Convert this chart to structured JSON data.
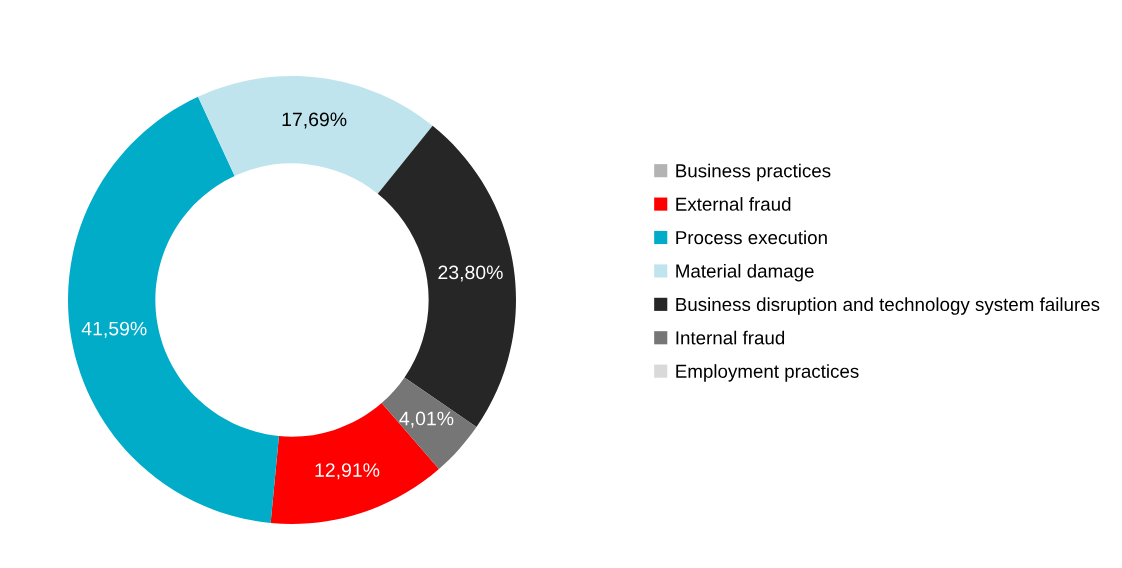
{
  "chart_data": {
    "type": "donut",
    "categories": [
      "Business practices",
      "External fraud",
      "Process execution",
      "Material damage",
      "Business disruption and technology system failures",
      "Internal fraud",
      "Employment practices"
    ],
    "values": [
      0,
      12.91,
      41.59,
      17.69,
      23.8,
      4.01,
      0
    ],
    "colors": [
      "#b3b3b3",
      "#ff0000",
      "#00acc8",
      "#bfe4ee",
      "#262626",
      "#767676",
      "#d9d9d9"
    ],
    "value_labels": [
      null,
      "12,91%",
      "41,59%",
      "17,69%",
      "23,80%",
      "4,01%",
      null
    ],
    "legend": "right"
  }
}
